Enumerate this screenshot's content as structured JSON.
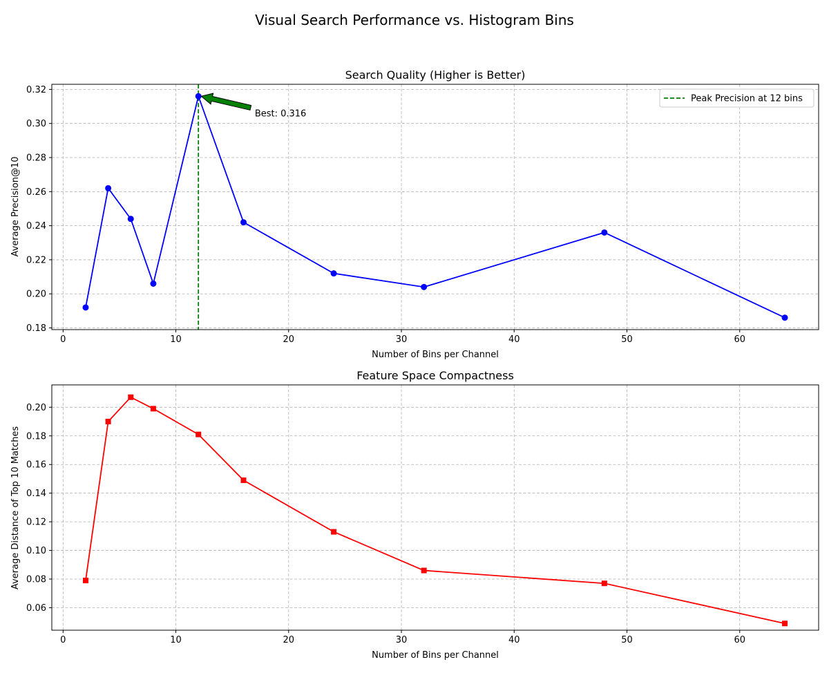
{
  "figure": {
    "suptitle": "Visual Search Performance vs. Histogram Bins"
  },
  "colors": {
    "precision_line": "#0000ff",
    "distance_line": "#ff0000",
    "peak_line": "#008000",
    "arrow_fill": "#008000",
    "grid": "#b0b0b0"
  },
  "chart_data": [
    {
      "type": "line",
      "title": "Search Quality (Higher is Better)",
      "xlabel": "Number of Bins per Channel",
      "ylabel": "Average Precision@10",
      "xlim": [
        -1,
        67
      ],
      "ylim": [
        0.179,
        0.323
      ],
      "xticks": [
        0,
        10,
        20,
        30,
        40,
        50,
        60
      ],
      "yticks": [
        0.18,
        0.2,
        0.22,
        0.24,
        0.26,
        0.28,
        0.3,
        0.32
      ],
      "ytick_decimals": 2,
      "grid": true,
      "marker": "circle",
      "series": [
        {
          "x": [
            2,
            4,
            6,
            8,
            12,
            16,
            24,
            32,
            48,
            64
          ],
          "values": [
            0.192,
            0.262,
            0.244,
            0.206,
            0.316,
            0.242,
            0.212,
            0.204,
            0.236,
            0.186
          ]
        }
      ],
      "vline": {
        "x": 12,
        "style": "dashed",
        "label": "Peak Precision at 12 bins"
      },
      "legend": {
        "placement": "upper right",
        "entries": [
          "Peak Precision at 12 bins"
        ]
      },
      "annotation": {
        "text": "Best: 0.316",
        "x": 12,
        "y": 0.316,
        "text_x": 17,
        "text_y": 0.306
      }
    },
    {
      "type": "line",
      "title": "Feature Space Compactness",
      "xlabel": "Number of Bins per Channel",
      "ylabel": "Average Distance of Top 10 Matches",
      "xlim": [
        -1,
        67
      ],
      "ylim": [
        0.0443,
        0.2156
      ],
      "xticks": [
        0,
        10,
        20,
        30,
        40,
        50,
        60
      ],
      "yticks": [
        0.06,
        0.08,
        0.1,
        0.12,
        0.14,
        0.16,
        0.18,
        0.2
      ],
      "ytick_decimals": 2,
      "grid": true,
      "marker": "square",
      "series": [
        {
          "x": [
            2,
            4,
            6,
            8,
            12,
            16,
            24,
            32,
            48,
            64
          ],
          "values": [
            0.079,
            0.19,
            0.207,
            0.199,
            0.181,
            0.149,
            0.113,
            0.086,
            0.077,
            0.049
          ]
        }
      ]
    }
  ]
}
